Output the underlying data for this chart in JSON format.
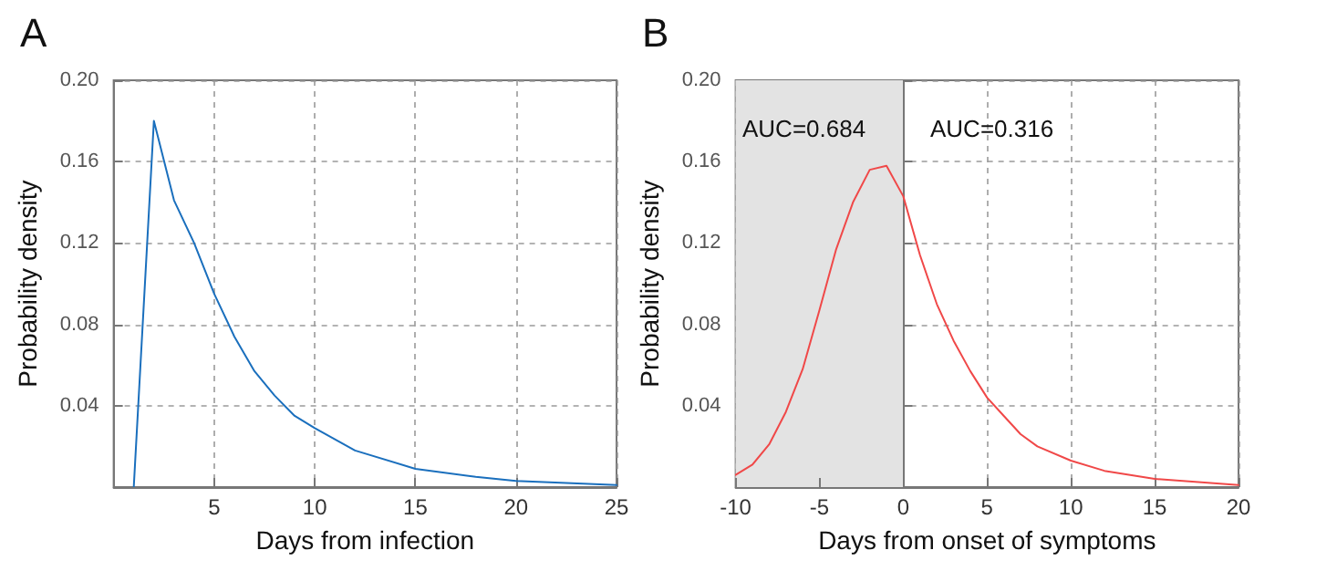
{
  "chart_data": [
    {
      "type": "line",
      "title": "A",
      "xlabel": "Days from infection",
      "ylabel": "Probability density",
      "xlim": [
        0,
        25
      ],
      "xticks": [
        5,
        10,
        15,
        20,
        25
      ],
      "ylim": [
        0,
        0.2
      ],
      "yticks": [
        0.04,
        0.08,
        0.12,
        0.16,
        {
          "value": 0.2,
          "label": "0.20"
        }
      ],
      "grid": true,
      "marker": "none",
      "line_style": "solid",
      "series": [
        {
          "color": "#1a6fbd",
          "x": [
            1,
            2,
            3,
            4,
            5,
            6,
            7,
            8,
            9,
            10,
            12,
            15,
            18,
            20,
            25
          ],
          "values": [
            0,
            0.18,
            0.141,
            0.12,
            0.095,
            0.074,
            0.057,
            0.045,
            0.035,
            0.029,
            0.018,
            0.009,
            0.005,
            0.003,
            0.001
          ]
        }
      ]
    },
    {
      "type": "line",
      "title": "B",
      "xlabel": "Days from onset of symptoms",
      "ylabel": "Probability density",
      "xlim": [
        -10,
        20
      ],
      "xticks": [
        -10,
        -5,
        0,
        5,
        10,
        15,
        20
      ],
      "ylim": [
        0,
        0.2
      ],
      "yticks": [
        0.04,
        0.08,
        0.12,
        0.16,
        {
          "value": 0.2,
          "label": "0.20"
        }
      ],
      "grid": true,
      "marker": "none",
      "line_style": "solid",
      "bands": [
        {
          "axis": "x",
          "from": -10,
          "to": 0,
          "color": "#e3e3e3"
        }
      ],
      "annotations": [
        "AUC=0.684",
        "AUC=0.316"
      ],
      "series": [
        {
          "color": "#f04848",
          "x": [
            -10,
            -9,
            -8,
            -7,
            -6,
            -5,
            -4,
            -3,
            -2,
            -1,
            0,
            1,
            2,
            3,
            4,
            5,
            6,
            7,
            8,
            10,
            12,
            15,
            20
          ],
          "values": [
            0.006,
            0.011,
            0.021,
            0.037,
            0.058,
            0.087,
            0.117,
            0.14,
            0.156,
            0.158,
            0.143,
            0.114,
            0.09,
            0.072,
            0.057,
            0.044,
            0.035,
            0.026,
            0.02,
            0.013,
            0.008,
            0.004,
            0.001
          ]
        }
      ]
    }
  ]
}
